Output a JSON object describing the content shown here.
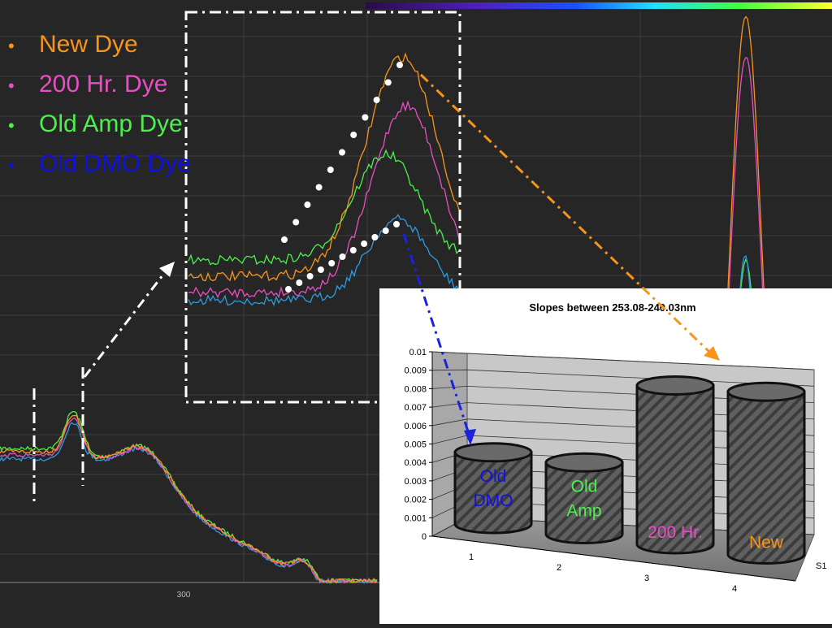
{
  "legend": {
    "items": [
      {
        "label": "New Dye",
        "color": "#f7941d"
      },
      {
        "label": "200 Hr. Dye",
        "color": "#e84fc4"
      },
      {
        "label": "Old Amp Dye",
        "color": "#4cf04c"
      },
      {
        "label": "Old DMO Dye",
        "color": "#1010e0"
      }
    ]
  },
  "spectrum": {
    "x_tick_label": "300"
  },
  "chart_data": {
    "type": "bar",
    "title": "Slopes between 253.08-240.03nm",
    "categories": [
      "1",
      "2",
      "3",
      "4"
    ],
    "series": [
      {
        "name": "S1",
        "values": [
          0.0037,
          0.0037,
          0.0082,
          0.0084
        ]
      }
    ],
    "bar_labels": [
      {
        "text": "Old DMO",
        "color": "#1010e0"
      },
      {
        "text": "Old Amp",
        "color": "#4cf04c"
      },
      {
        "text": "200 Hr.",
        "color": "#e84fc4"
      },
      {
        "text": "New",
        "color": "#f7941d"
      }
    ],
    "yticks": [
      "0",
      "0.001",
      "0.002",
      "0.003",
      "0.004",
      "0.005",
      "0.006",
      "0.007",
      "0.008",
      "0.009",
      "0.01"
    ],
    "ylim": [
      0,
      0.01
    ],
    "grid": true,
    "legend_position": "right"
  },
  "colors": {
    "background": "#262626",
    "arrow_orange": "#f7941d",
    "arrow_blue": "#1a22e0",
    "arrow_white": "#ffffff"
  }
}
